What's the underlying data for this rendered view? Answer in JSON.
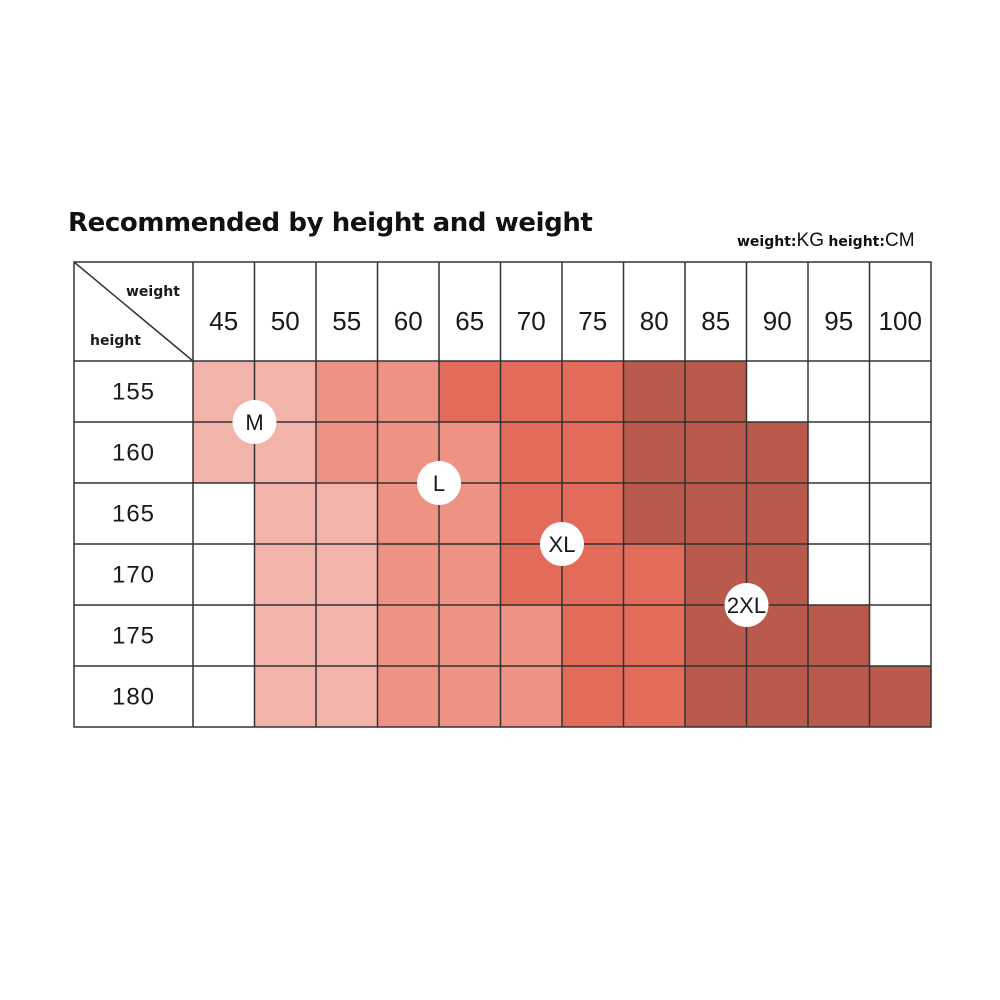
{
  "title": "Recommended by height and weight",
  "units": {
    "weight_label": "weight:",
    "weight_unit": "KG",
    "height_label": "height:",
    "height_unit": "CM"
  },
  "chart_data": {
    "type": "heatmap",
    "corner": {
      "column_header": "weight",
      "row_header": "height"
    },
    "weights": [
      "45",
      "50",
      "55",
      "60",
      "65",
      "70",
      "75",
      "80",
      "85",
      "90",
      "95",
      "100"
    ],
    "heights": [
      "155",
      "160",
      "165",
      "170",
      "175",
      "180"
    ],
    "shade_colors": [
      "#ffffff",
      "#f2b3aa",
      "#ee9384",
      "#e36b5a",
      "#b95a4c"
    ],
    "levels": [
      [
        1,
        1,
        2,
        2,
        3,
        3,
        3,
        4,
        4,
        0,
        0,
        0
      ],
      [
        1,
        1,
        2,
        2,
        2,
        3,
        3,
        4,
        4,
        4,
        0,
        0
      ],
      [
        0,
        1,
        1,
        2,
        2,
        3,
        3,
        4,
        4,
        4,
        0,
        0
      ],
      [
        0,
        1,
        1,
        2,
        2,
        3,
        3,
        3,
        4,
        4,
        0,
        0
      ],
      [
        0,
        1,
        1,
        2,
        2,
        2,
        3,
        3,
        4,
        4,
        4,
        0
      ],
      [
        0,
        1,
        1,
        2,
        2,
        2,
        3,
        3,
        4,
        4,
        4,
        4
      ]
    ],
    "size_labels": [
      {
        "label": "M",
        "weight": "50",
        "height": "160"
      },
      {
        "label": "L",
        "weight": "65",
        "height": "165"
      },
      {
        "label": "XL",
        "weight": "75",
        "height": "170"
      },
      {
        "label": "2XL",
        "weight": "90",
        "height": "175"
      }
    ]
  }
}
